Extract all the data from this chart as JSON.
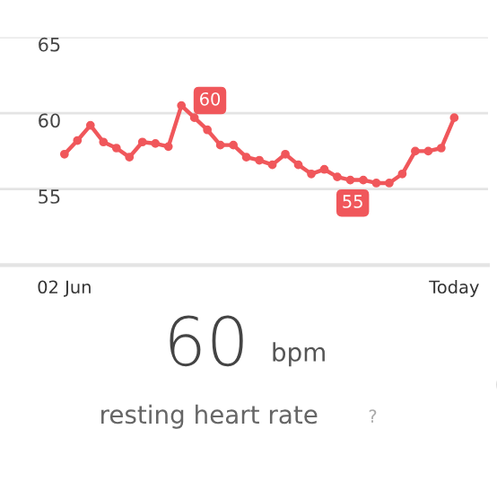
{
  "chart_data": {
    "type": "line",
    "categories": [
      "02 Jun",
      null,
      null,
      null,
      null,
      null,
      null,
      null,
      null,
      null,
      null,
      null,
      null,
      null,
      null,
      null,
      null,
      null,
      null,
      null,
      null,
      null,
      null,
      null,
      null,
      null,
      null,
      null,
      null,
      null,
      "Today"
    ],
    "series": [
      {
        "color": "#f0575b",
        "values": [
          57.3,
          58.2,
          59.2,
          58.1,
          57.7,
          57.1,
          58.1,
          58.0,
          57.8,
          60.5,
          59.7,
          58.9,
          57.9,
          57.9,
          57.1,
          56.9,
          56.6,
          57.3,
          56.6,
          56.0,
          56.3,
          55.8,
          55.6,
          55.6,
          55.4,
          55.4,
          56.0,
          57.5,
          57.5,
          57.7,
          59.7
        ]
      }
    ],
    "ylim": [
      50,
      65
    ],
    "yticks": [
      65,
      60,
      55
    ],
    "grid": "y",
    "marker": "circle",
    "line_style": "solid",
    "annotations": [
      "60",
      "55",
      "60",
      "bpm",
      "resting heart rate",
      "?"
    ]
  }
}
